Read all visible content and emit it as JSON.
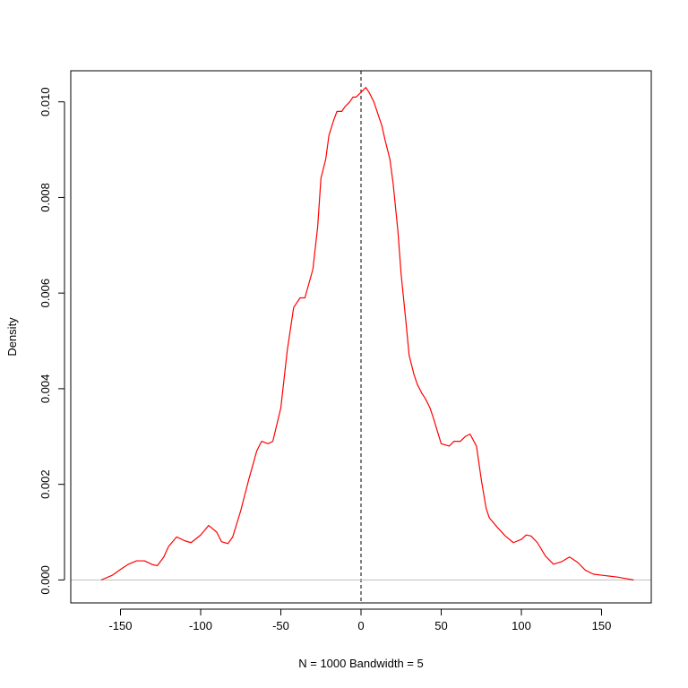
{
  "chart_data": {
    "type": "line",
    "title": "",
    "xlabel": "N = 1000   Bandwidth = 5",
    "ylabel": "Density",
    "xlim": [
      -181,
      181
    ],
    "ylim": [
      -0.00048,
      0.01065
    ],
    "x_ticks": [
      -150,
      -100,
      -50,
      0,
      50,
      100,
      150
    ],
    "x_tick_labels": [
      "-150",
      "-100",
      "-50",
      "0",
      "50",
      "100",
      "150"
    ],
    "y_ticks": [
      0.0,
      0.002,
      0.004,
      0.006,
      0.008,
      0.01
    ],
    "y_tick_labels": [
      "0.000",
      "0.002",
      "0.004",
      "0.006",
      "0.008",
      "0.010"
    ],
    "grid": false,
    "legend": "none",
    "series": [
      {
        "color": "#ff0000",
        "x": [
          -162,
          -155,
          -150,
          -145,
          -140,
          -135,
          -130,
          -127,
          -123,
          -120,
          -115,
          -110,
          -106,
          -100,
          -95,
          -90,
          -87,
          -83,
          -80,
          -75,
          -70,
          -65,
          -62,
          -58,
          -55,
          -50,
          -46,
          -42,
          -40,
          -38,
          -35,
          -30,
          -27,
          -25,
          -22,
          -20,
          -17,
          -15,
          -12,
          -10,
          -7,
          -5,
          -3,
          0,
          3,
          5,
          8,
          10,
          13,
          15,
          18,
          20,
          23,
          25,
          28,
          30,
          33,
          35,
          38,
          40,
          43,
          45,
          50,
          55,
          58,
          62,
          65,
          68,
          72,
          75,
          78,
          80,
          85,
          90,
          95,
          100,
          103,
          106,
          110,
          115,
          120,
          125,
          130,
          135,
          140,
          145,
          150,
          155,
          160,
          165,
          170
        ],
        "y": [
          0.0,
          0.0001,
          0.00022,
          0.00033,
          0.0004,
          0.0004,
          0.00032,
          0.0003,
          0.00048,
          0.0007,
          0.0009,
          0.00082,
          0.00078,
          0.00094,
          0.00114,
          0.001,
          0.0008,
          0.00076,
          0.0009,
          0.00145,
          0.0021,
          0.0027,
          0.0029,
          0.00285,
          0.0029,
          0.0036,
          0.0048,
          0.0057,
          0.0058,
          0.0059,
          0.0059,
          0.0065,
          0.0074,
          0.0084,
          0.0088,
          0.0093,
          0.00962,
          0.0098,
          0.0098,
          0.0099,
          0.01,
          0.0101,
          0.0101,
          0.0102,
          0.0103,
          0.0102,
          0.01,
          0.0098,
          0.0095,
          0.0092,
          0.0088,
          0.0083,
          0.0073,
          0.0064,
          0.0054,
          0.0047,
          0.0043,
          0.0041,
          0.0039,
          0.0038,
          0.0036,
          0.0034,
          0.00285,
          0.0028,
          0.0029,
          0.0029,
          0.003,
          0.00305,
          0.0028,
          0.0021,
          0.0015,
          0.0013,
          0.0011,
          0.00092,
          0.00078,
          0.00085,
          0.00094,
          0.00092,
          0.00078,
          0.0005,
          0.00033,
          0.00038,
          0.00048,
          0.00037,
          0.0002,
          0.00012,
          0.0001,
          8e-05,
          6e-05,
          3e-05,
          0.0
        ]
      }
    ],
    "reference_lines": [
      {
        "orientation": "vertical",
        "value": 0,
        "style": "dashed",
        "color": "#000000"
      },
      {
        "orientation": "horizontal",
        "value": 0,
        "style": "solid",
        "color": "#bebebe"
      }
    ]
  }
}
